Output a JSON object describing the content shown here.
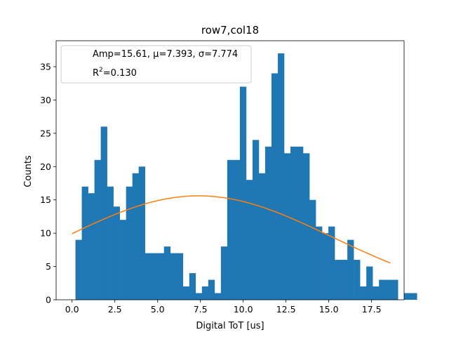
{
  "chart_data": {
    "type": "bar",
    "title": "row7,col18",
    "xlabel": "Digital ToT [us]",
    "ylabel": "Counts",
    "xlim": [
      -0.93,
      19.4
    ],
    "ylim": [
      0,
      38.9
    ],
    "xticks": [
      0.0,
      2.5,
      5.0,
      7.5,
      10.0,
      12.5,
      15.0,
      17.5
    ],
    "xtick_labels": [
      "0.0",
      "2.5",
      "5.0",
      "7.5",
      "10.0",
      "12.5",
      "15.0",
      "17.5"
    ],
    "yticks": [
      0,
      5,
      10,
      15,
      20,
      25,
      30,
      35
    ],
    "ytick_labels": [
      "0",
      "5",
      "10",
      "15",
      "20",
      "25",
      "30",
      "35"
    ],
    "bar_color": "#1f77b4",
    "fit_color": "#ff7f0e",
    "series": [
      {
        "type": "histogram",
        "bin_start": 0.2,
        "bin_width": 0.3694,
        "counts": [
          9,
          17,
          16,
          21,
          26,
          17,
          14,
          12,
          17,
          19,
          20,
          7,
          7,
          7,
          8,
          7,
          7,
          2,
          4,
          1,
          2,
          3,
          1,
          8,
          21,
          21,
          32,
          18,
          24,
          19,
          23,
          34,
          37,
          22,
          23,
          23,
          22,
          15,
          11,
          10,
          11,
          6,
          6,
          9,
          6,
          2,
          5,
          2,
          3,
          3,
          3,
          0,
          1,
          1
        ]
      },
      {
        "type": "line",
        "function": "gaussian",
        "amp": 15.61,
        "mu": 7.393,
        "sigma": 7.774,
        "x_range": [
          0.0,
          18.6
        ]
      }
    ],
    "legend": {
      "placement": "top-left",
      "line1": "Amp=15.61, μ=7.393, σ=7.774",
      "r2_prefix": "R",
      "r2_sup": "2",
      "r2_value": "=0.130"
    },
    "grid": false
  }
}
